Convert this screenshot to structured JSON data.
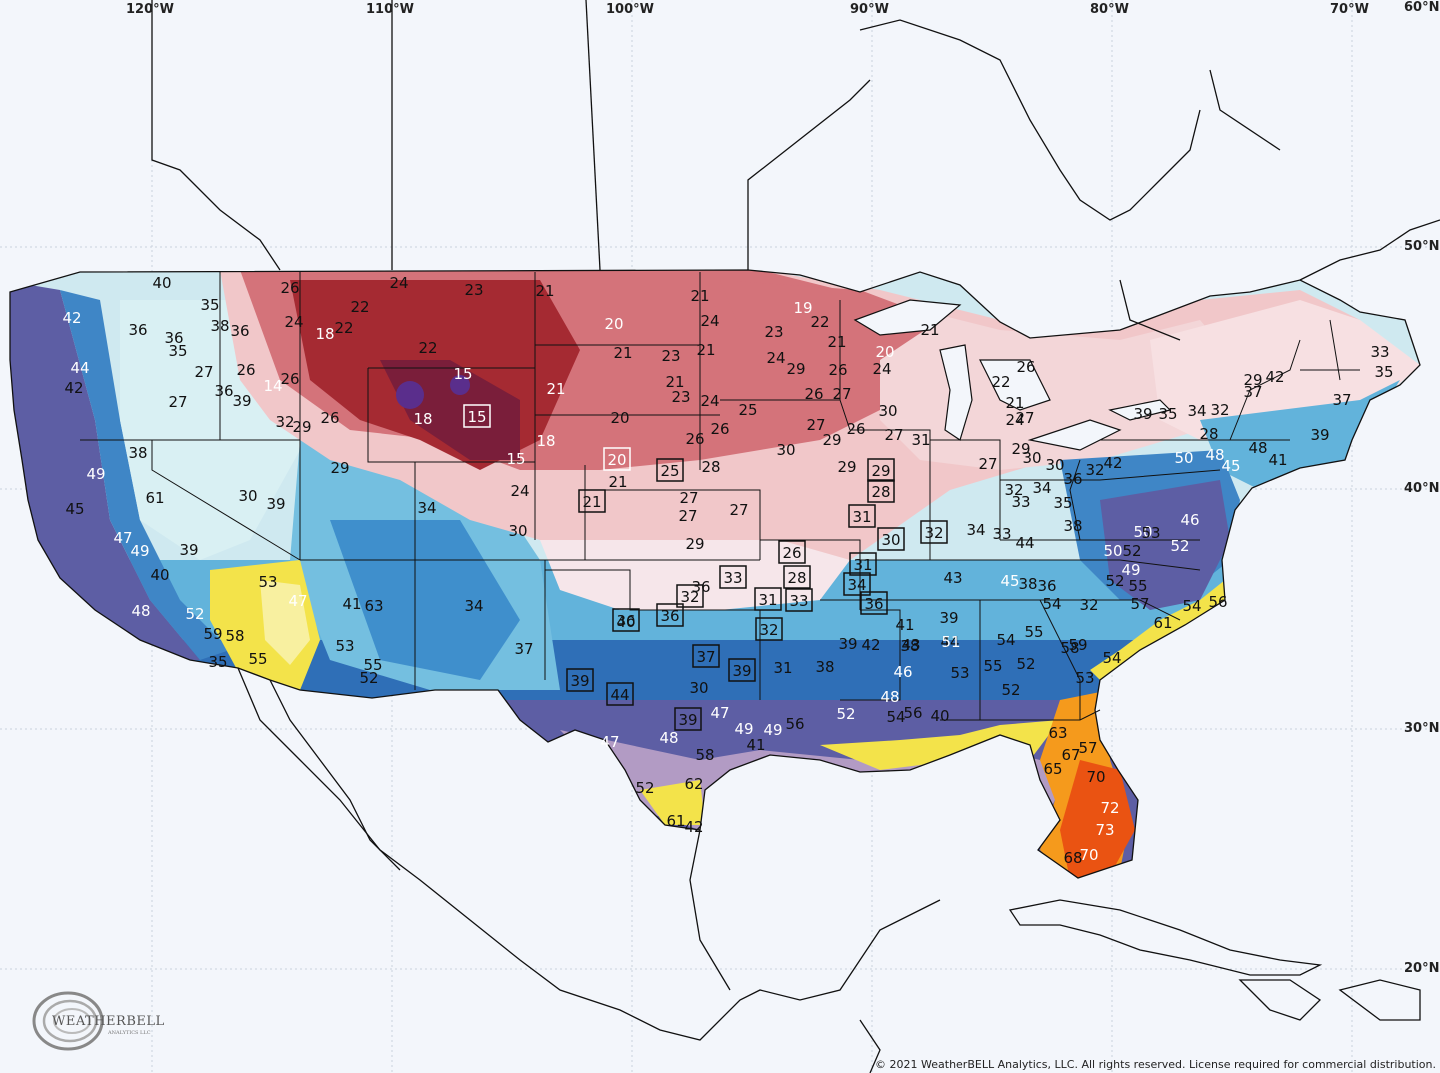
{
  "axis_labels": {
    "lon": [
      "120°W",
      "110°W",
      "100°W",
      "90°W",
      "80°W",
      "70°W",
      "60°N"
    ],
    "lat": [
      "50°N",
      "40°N",
      "30°N",
      "20°N"
    ]
  },
  "copyright": "© 2021 WeatherBELL Analytics, LLC. All rights reserved. License required for commercial distribution.",
  "logo": {
    "text": "WEATHERBELL",
    "subtext": "ANALYTICS LLC"
  },
  "colors": {
    "background": "#f3f6fb",
    "cold_core": "#5a2e8c",
    "very_cold": "#a52a32",
    "cold": "#d4737a",
    "cool": "#f1c7c9",
    "mild": "#cfeef1",
    "moderate": "#62b3db",
    "warmish": "#2f6fb7",
    "warm": "#5d5ea4",
    "hot": "#f3e34a",
    "very_hot": "#f59a1c",
    "hottest": "#ea5312",
    "land_outline": "#111111",
    "text_dark": "#111111",
    "text_light": "#ffffff"
  },
  "temperature_labels": [
    {
      "v": "40",
      "c": "d"
    },
    {
      "v": "35",
      "c": "d"
    },
    {
      "v": "36",
      "c": "d"
    },
    {
      "v": "36",
      "c": "d"
    },
    {
      "v": "38",
      "c": "d"
    },
    {
      "v": "36",
      "c": "d"
    },
    {
      "v": "35",
      "c": "d"
    },
    {
      "v": "42",
      "c": "w"
    },
    {
      "v": "44",
      "c": "w"
    },
    {
      "v": "42",
      "c": "d"
    },
    {
      "v": "27",
      "c": "d"
    },
    {
      "v": "27",
      "c": "d"
    },
    {
      "v": "36",
      "c": "d"
    },
    {
      "v": "39",
      "c": "d"
    },
    {
      "v": "26",
      "c": "d"
    },
    {
      "v": "24",
      "c": "d"
    },
    {
      "v": "18",
      "c": "w"
    },
    {
      "v": "22",
      "c": "d"
    },
    {
      "v": "22",
      "c": "d"
    },
    {
      "v": "24",
      "c": "d"
    },
    {
      "v": "23",
      "c": "d"
    },
    {
      "v": "22",
      "c": "d"
    },
    {
      "v": "26",
      "c": "d"
    },
    {
      "v": "26",
      "c": "d"
    },
    {
      "v": "14",
      "c": "w"
    },
    {
      "v": "32",
      "c": "d"
    },
    {
      "v": "29",
      "c": "d"
    },
    {
      "v": "26",
      "c": "d"
    },
    {
      "v": "15",
      "c": "w"
    },
    {
      "v": "18",
      "c": "w"
    },
    {
      "v": "15",
      "c": "w",
      "boxed": true
    },
    {
      "v": "18",
      "c": "w"
    },
    {
      "v": "15",
      "c": "w"
    },
    {
      "v": "21",
      "c": "w"
    },
    {
      "v": "21",
      "c": "d"
    },
    {
      "v": "20",
      "c": "w"
    },
    {
      "v": "21",
      "c": "d"
    },
    {
      "v": "21",
      "c": "d"
    },
    {
      "v": "24",
      "c": "d"
    },
    {
      "v": "23",
      "c": "d"
    },
    {
      "v": "21",
      "c": "d"
    },
    {
      "v": "23",
      "c": "d"
    },
    {
      "v": "20",
      "c": "d"
    },
    {
      "v": "20",
      "c": "w",
      "boxed": true
    },
    {
      "v": "21",
      "c": "d"
    },
    {
      "v": "24",
      "c": "d"
    },
    {
      "v": "21",
      "c": "d"
    },
    {
      "v": "26",
      "c": "d"
    },
    {
      "v": "24",
      "c": "d"
    },
    {
      "v": "21",
      "c": "d",
      "boxed": true
    },
    {
      "v": "25",
      "c": "d",
      "boxed": true
    },
    {
      "v": "28",
      "c": "d"
    },
    {
      "v": "27",
      "c": "d"
    },
    {
      "v": "27",
      "c": "d"
    },
    {
      "v": "27",
      "c": "d"
    },
    {
      "v": "29",
      "c": "d"
    },
    {
      "v": "26",
      "c": "d"
    },
    {
      "v": "25",
      "c": "d"
    },
    {
      "v": "24",
      "c": "d"
    },
    {
      "v": "23",
      "c": "d"
    },
    {
      "v": "19",
      "c": "w"
    },
    {
      "v": "22",
      "c": "d"
    },
    {
      "v": "21",
      "c": "d"
    },
    {
      "v": "20",
      "c": "w"
    },
    {
      "v": "24",
      "c": "d"
    },
    {
      "v": "26",
      "c": "d"
    },
    {
      "v": "29",
      "c": "d"
    },
    {
      "v": "26",
      "c": "d"
    },
    {
      "v": "27",
      "c": "d"
    },
    {
      "v": "30",
      "c": "d"
    },
    {
      "v": "27",
      "c": "d"
    },
    {
      "v": "29",
      "c": "d"
    },
    {
      "v": "27",
      "c": "d"
    },
    {
      "v": "30",
      "c": "d"
    },
    {
      "v": "26",
      "c": "d"
    },
    {
      "v": "29",
      "c": "d"
    },
    {
      "v": "31",
      "c": "d"
    },
    {
      "v": "21",
      "c": "d"
    },
    {
      "v": "22",
      "c": "d"
    },
    {
      "v": "26",
      "c": "d"
    },
    {
      "v": "21",
      "c": "d"
    },
    {
      "v": "24",
      "c": "d"
    },
    {
      "v": "27",
      "c": "d"
    },
    {
      "v": "29",
      "c": "d"
    },
    {
      "v": "27",
      "c": "d"
    },
    {
      "v": "30",
      "c": "d"
    },
    {
      "v": "32",
      "c": "d"
    },
    {
      "v": "34",
      "c": "d"
    },
    {
      "v": "33",
      "c": "d"
    },
    {
      "v": "29",
      "c": "d",
      "boxed": true
    },
    {
      "v": "28",
      "c": "d",
      "boxed": true
    },
    {
      "v": "31",
      "c": "d",
      "boxed": true
    },
    {
      "v": "30",
      "c": "d",
      "boxed": true
    },
    {
      "v": "32",
      "c": "d",
      "boxed": true
    },
    {
      "v": "26",
      "c": "d",
      "boxed": true
    },
    {
      "v": "28",
      "c": "d",
      "boxed": true
    },
    {
      "v": "31",
      "c": "d",
      "boxed": true
    },
    {
      "v": "34",
      "c": "d",
      "boxed": true
    },
    {
      "v": "36",
      "c": "d",
      "boxed": true
    },
    {
      "v": "33",
      "c": "d",
      "boxed": true
    },
    {
      "v": "32",
      "c": "d",
      "boxed": true
    },
    {
      "v": "31",
      "c": "d",
      "boxed": true
    },
    {
      "v": "33",
      "c": "d",
      "boxed": true
    },
    {
      "v": "32",
      "c": "d",
      "boxed": true
    },
    {
      "v": "36",
      "c": "d",
      "boxed": true
    },
    {
      "v": "36",
      "c": "d",
      "boxed": true
    },
    {
      "v": "39",
      "c": "d",
      "boxed": true
    },
    {
      "v": "44",
      "c": "d",
      "boxed": true
    },
    {
      "v": "37",
      "c": "d",
      "boxed": true
    },
    {
      "v": "39",
      "c": "d",
      "boxed": true
    },
    {
      "v": "39",
      "c": "d",
      "boxed": true
    },
    {
      "v": "31",
      "c": "d"
    },
    {
      "v": "30",
      "c": "d"
    },
    {
      "v": "36",
      "c": "d"
    },
    {
      "v": "40",
      "c": "d"
    },
    {
      "v": "37",
      "c": "d"
    },
    {
      "v": "34",
      "c": "d"
    },
    {
      "v": "34",
      "c": "d"
    },
    {
      "v": "30",
      "c": "d"
    },
    {
      "v": "29",
      "c": "d"
    },
    {
      "v": "39",
      "c": "d"
    },
    {
      "v": "30",
      "c": "d"
    },
    {
      "v": "38",
      "c": "d"
    },
    {
      "v": "49",
      "c": "w"
    },
    {
      "v": "45",
      "c": "d"
    },
    {
      "v": "47",
      "c": "w"
    },
    {
      "v": "49",
      "c": "w"
    },
    {
      "v": "40",
      "c": "d"
    },
    {
      "v": "39",
      "c": "d"
    },
    {
      "v": "61",
      "c": "d"
    },
    {
      "v": "53",
      "c": "d"
    },
    {
      "v": "47",
      "c": "w"
    },
    {
      "v": "48",
      "c": "w"
    },
    {
      "v": "52",
      "c": "w"
    },
    {
      "v": "59",
      "c": "d"
    },
    {
      "v": "58",
      "c": "d"
    },
    {
      "v": "55",
      "c": "d"
    },
    {
      "v": "35",
      "c": "d"
    },
    {
      "v": "41",
      "c": "d"
    },
    {
      "v": "63",
      "c": "d"
    },
    {
      "v": "53",
      "c": "d"
    },
    {
      "v": "55",
      "c": "d"
    },
    {
      "v": "52",
      "c": "d"
    },
    {
      "v": "47",
      "c": "w"
    },
    {
      "v": "48",
      "c": "w"
    },
    {
      "v": "58",
      "c": "d"
    },
    {
      "v": "52",
      "c": "d"
    },
    {
      "v": "61",
      "c": "d"
    },
    {
      "v": "62",
      "c": "d"
    },
    {
      "v": "42",
      "c": "d"
    },
    {
      "v": "47",
      "c": "w"
    },
    {
      "v": "49",
      "c": "w"
    },
    {
      "v": "49",
      "c": "w"
    },
    {
      "v": "56",
      "c": "d"
    },
    {
      "v": "41",
      "c": "d"
    },
    {
      "v": "38",
      "c": "d"
    },
    {
      "v": "39",
      "c": "d"
    },
    {
      "v": "42",
      "c": "d"
    },
    {
      "v": "41",
      "c": "d"
    },
    {
      "v": "43",
      "c": "d"
    },
    {
      "v": "46",
      "c": "w"
    },
    {
      "v": "48",
      "c": "w"
    },
    {
      "v": "52",
      "c": "w"
    },
    {
      "v": "54",
      "c": "d"
    },
    {
      "v": "56",
      "c": "d"
    },
    {
      "v": "40",
      "c": "d"
    },
    {
      "v": "38",
      "c": "d"
    },
    {
      "v": "39",
      "c": "d"
    },
    {
      "v": "44",
      "c": "d"
    },
    {
      "v": "51",
      "c": "w"
    },
    {
      "v": "53",
      "c": "d"
    },
    {
      "v": "55",
      "c": "d"
    },
    {
      "v": "52",
      "c": "d"
    },
    {
      "v": "54",
      "c": "d"
    },
    {
      "v": "52",
      "c": "d"
    },
    {
      "v": "55",
      "c": "d"
    },
    {
      "v": "59",
      "c": "d"
    },
    {
      "v": "58",
      "c": "d"
    },
    {
      "v": "63",
      "c": "d"
    },
    {
      "v": "65",
      "c": "d"
    },
    {
      "v": "67",
      "c": "d"
    },
    {
      "v": "70",
      "c": "d"
    },
    {
      "v": "72",
      "c": "w"
    },
    {
      "v": "73",
      "c": "w"
    },
    {
      "v": "70",
      "c": "w"
    },
    {
      "v": "68",
      "c": "d"
    },
    {
      "v": "57",
      "c": "d"
    },
    {
      "v": "53",
      "c": "d"
    },
    {
      "v": "54",
      "c": "d"
    },
    {
      "v": "55",
      "c": "d"
    },
    {
      "v": "52",
      "c": "d"
    },
    {
      "v": "54",
      "c": "d"
    },
    {
      "v": "57",
      "c": "d"
    },
    {
      "v": "61",
      "c": "d"
    },
    {
      "v": "56",
      "c": "d"
    },
    {
      "v": "54",
      "c": "d"
    },
    {
      "v": "50",
      "c": "w"
    },
    {
      "v": "49",
      "c": "w"
    },
    {
      "v": "50",
      "c": "w"
    },
    {
      "v": "52",
      "c": "d"
    },
    {
      "v": "53",
      "c": "d"
    },
    {
      "v": "52",
      "c": "w"
    },
    {
      "v": "46",
      "c": "w"
    },
    {
      "v": "50",
      "c": "w"
    },
    {
      "v": "48",
      "c": "w"
    },
    {
      "v": "45",
      "c": "w"
    },
    {
      "v": "48",
      "c": "d"
    },
    {
      "v": "41",
      "c": "d"
    },
    {
      "v": "39",
      "c": "d"
    },
    {
      "v": "37",
      "c": "d"
    },
    {
      "v": "35",
      "c": "d"
    },
    {
      "v": "33",
      "c": "d"
    },
    {
      "v": "32",
      "c": "d"
    },
    {
      "v": "34",
      "c": "d"
    },
    {
      "v": "35",
      "c": "d"
    },
    {
      "v": "39",
      "c": "d"
    },
    {
      "v": "28",
      "c": "d"
    },
    {
      "v": "29",
      "c": "d"
    },
    {
      "v": "37",
      "c": "d"
    },
    {
      "v": "42",
      "c": "d"
    },
    {
      "v": "38",
      "c": "d"
    },
    {
      "v": "44",
      "c": "d"
    },
    {
      "v": "36",
      "c": "d"
    },
    {
      "v": "42",
      "c": "d"
    },
    {
      "v": "43",
      "c": "d"
    },
    {
      "v": "45",
      "c": "w"
    },
    {
      "v": "38",
      "c": "d"
    },
    {
      "v": "36",
      "c": "d"
    },
    {
      "v": "32",
      "c": "d"
    },
    {
      "v": "35",
      "c": "d"
    },
    {
      "v": "32",
      "c": "d"
    },
    {
      "v": "30",
      "c": "d"
    },
    {
      "v": "33",
      "c": "d"
    },
    {
      "v": "34",
      "c": "d"
    }
  ]
}
